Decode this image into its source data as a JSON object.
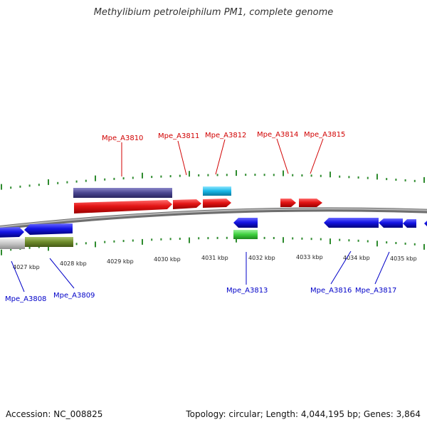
{
  "title": "Methylibium petroleiphilum PM1, complete genome",
  "footer": {
    "accession": "Accession: NC_008825",
    "summary": "Topology: circular; Length: 4,044,195 bp; Genes: 3,864"
  },
  "colors": {
    "backbone": "#8a8a8a",
    "tick": "#2e8b2e",
    "forward_gene": "#e31515",
    "reverse_gene": "#1515e6",
    "forward_label": "#d10000",
    "reverse_label": "#0000c8",
    "dark_bar": "#4a4690",
    "cyan_bar": "#18b6e6",
    "green_bar": "#3ecf3e",
    "olive_bar": "#6d8a2a",
    "grey_bar": "#c4c4c4"
  },
  "scale_labels": [
    "4027 kbp",
    "4028 kbp",
    "4029 kbp",
    "4030 kbp",
    "4031 kbp",
    "4032 kbp",
    "4033 kbp",
    "4034 kbp",
    "4035 kbp"
  ],
  "gene_labels": [
    {
      "text": "Mpe_A3810",
      "strand": "forward"
    },
    {
      "text": "Mpe_A3811",
      "strand": "forward"
    },
    {
      "text": "Mpe_A3812",
      "strand": "forward"
    },
    {
      "text": "Mpe_A3814",
      "strand": "forward"
    },
    {
      "text": "Mpe_A3815",
      "strand": "forward"
    },
    {
      "text": "Mpe_A3808",
      "strand": "reverse"
    },
    {
      "text": "Mpe_A3809",
      "strand": "reverse"
    },
    {
      "text": "Mpe_A3813",
      "strand": "reverse"
    },
    {
      "text": "Mpe_A3816",
      "strand": "reverse"
    },
    {
      "text": "Mpe_A3817",
      "strand": "reverse"
    }
  ]
}
